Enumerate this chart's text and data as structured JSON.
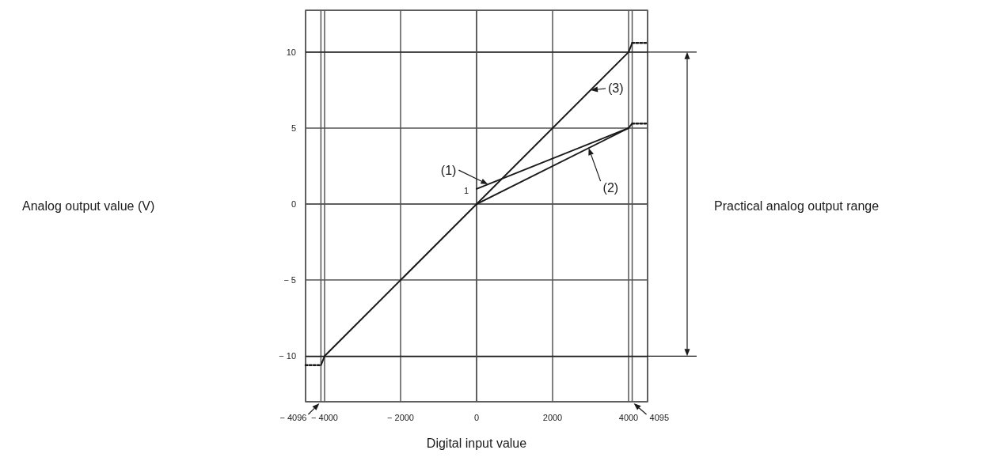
{
  "chart_data": {
    "type": "line",
    "xlabel": "Digital input value",
    "xlim": [
      -4500,
      4500
    ],
    "xticks": [
      {
        "value": -4000,
        "label": "− 4000"
      },
      {
        "value": -2000,
        "label": "− 2000"
      },
      0,
      2000,
      4000
    ],
    "ylim": [
      -13,
      12.75
    ],
    "yticks": [
      {
        "value": -10,
        "label": "− 10"
      },
      {
        "value": -5,
        "label": "− 5"
      },
      0,
      5,
      10
    ],
    "grid": true,
    "series": [
      {
        "color": "#1a1a1a",
        "line_style": "solid",
        "x": [
          -4096,
          -4000,
          4000,
          4095
        ],
        "values": [
          -10.6,
          -10,
          10,
          10.6
        ]
      },
      {
        "color": "#1a1a1a",
        "line_style": "dotted",
        "x": [
          -4500,
          -4096
        ],
        "values": [
          -10.6,
          -10.6
        ]
      },
      {
        "color": "#1a1a1a",
        "line_style": "dotted",
        "x": [
          4095,
          4500
        ],
        "values": [
          10.6,
          10.6
        ]
      },
      {
        "color": "#1a1a1a",
        "line_style": "solid",
        "x": [
          0,
          4000,
          4095
        ],
        "values": [
          0,
          5,
          5.3
        ]
      },
      {
        "color": "#1a1a1a",
        "line_style": "solid",
        "x": [
          0,
          4000
        ],
        "values": [
          1,
          5
        ]
      },
      {
        "color": "#1a1a1a",
        "line_style": "dotted",
        "x": [
          4095,
          4500
        ],
        "values": [
          5.3,
          5.3
        ]
      }
    ],
    "ref_lines": [
      {
        "axis": "x",
        "value": -4096,
        "label": "− 4096"
      },
      {
        "axis": "x",
        "value": 4095,
        "label": "4095"
      },
      {
        "axis": "y",
        "value": 10
      },
      {
        "axis": "y",
        "value": -10
      }
    ],
    "annotations": [
      {
        "text": "(1)",
        "x": 300,
        "y": 1.3
      },
      {
        "text": "(2)",
        "x": 2950,
        "y": 3.69
      },
      {
        "text": "(3)",
        "x": 3000,
        "y": 7.5
      },
      {
        "text": "1",
        "x": 0,
        "y": 1
      },
      "Analog output value (V)",
      "Practical analog output range"
    ]
  }
}
